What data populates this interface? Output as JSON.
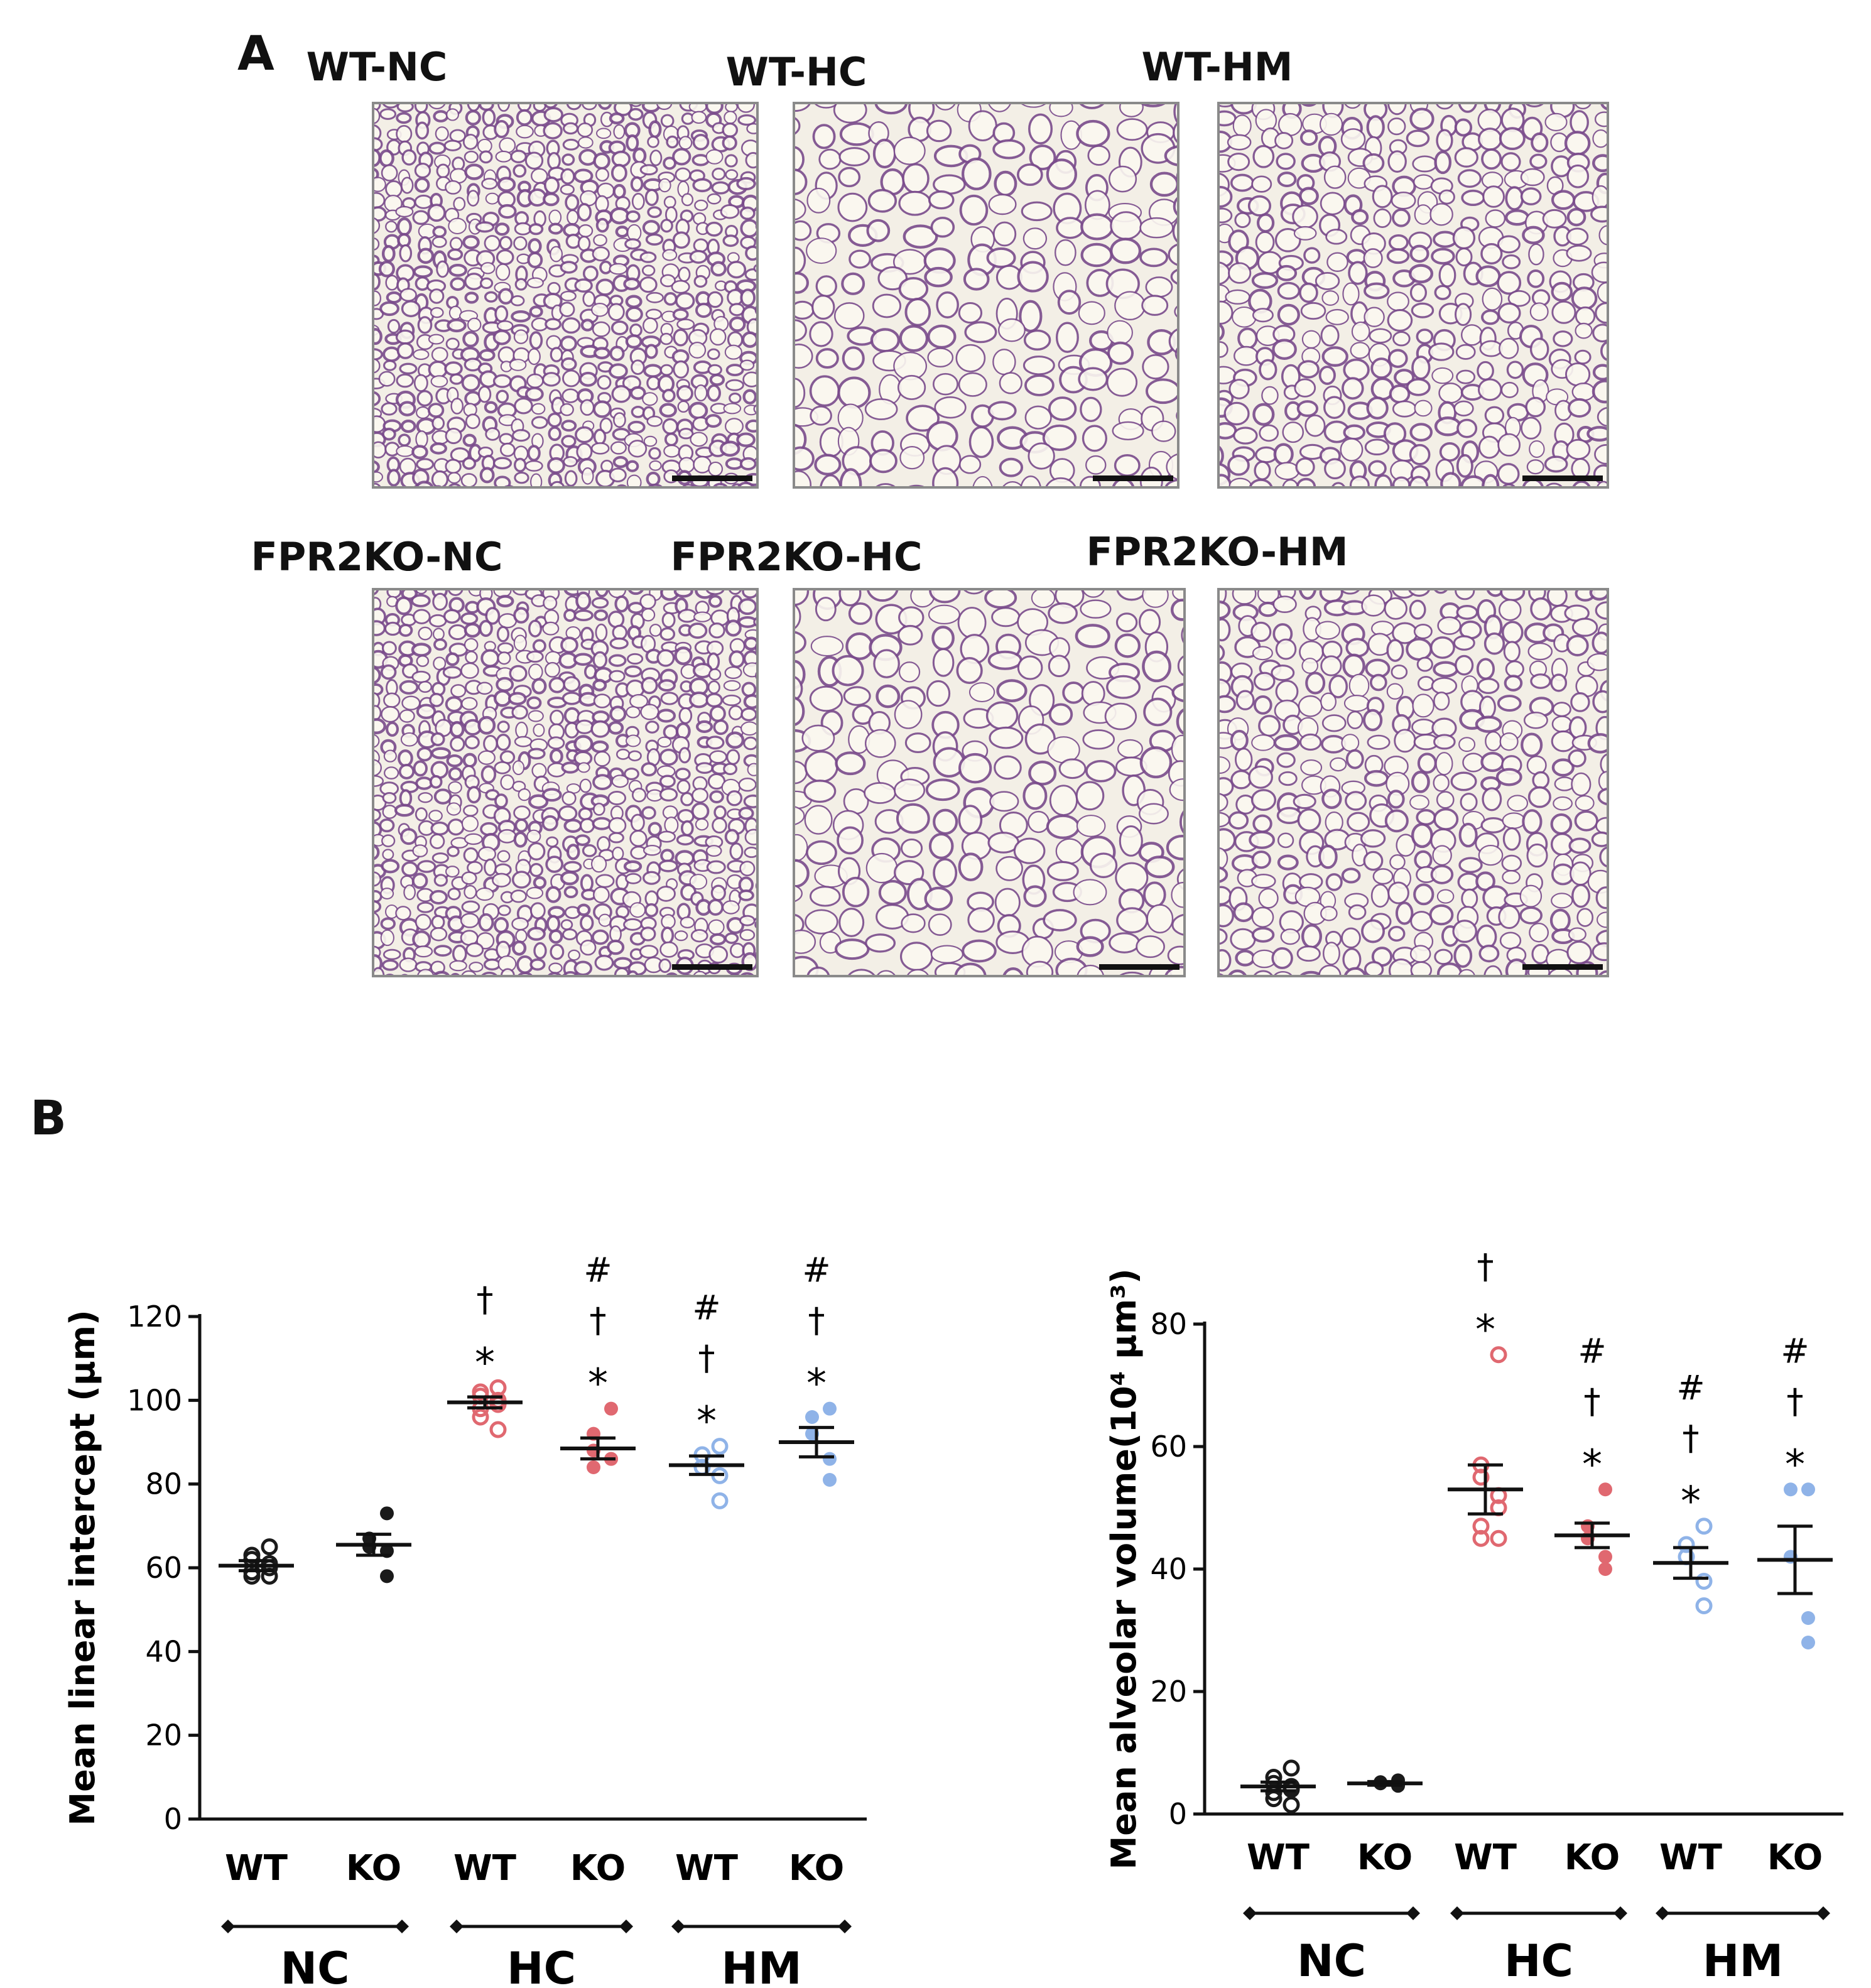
{
  "panel_a": {
    "letter": "A",
    "images": [
      {
        "title": "WT-NC",
        "tissue": "dense"
      },
      {
        "title": "WT-HC",
        "tissue": "large"
      },
      {
        "title": "WT-HM",
        "tissue": "medium"
      },
      {
        "title": "FPR2KO-NC",
        "tissue": "dense"
      },
      {
        "title": "FPR2KO-HC",
        "tissue": "large"
      },
      {
        "title": "FPR2KO-HM",
        "tissue": "medium"
      }
    ]
  },
  "panel_b": {
    "letter": "B"
  },
  "colors": {
    "black": "#1a1a1a",
    "red": "#e06870",
    "blue": "#8fb3e8",
    "tissue_stain": "#7a4b8c",
    "tissue_bg": "#f3efe6"
  },
  "chart_data": [
    {
      "type": "scatter",
      "ylabel": "Mean linear intercept (μm)",
      "ylim": [
        0,
        120
      ],
      "yticks": [
        0,
        20,
        40,
        60,
        80,
        100,
        120
      ],
      "categories": [
        "WT",
        "KO",
        "WT",
        "KO",
        "WT",
        "KO"
      ],
      "groups": [
        {
          "label": "NC",
          "span": [
            0,
            1
          ]
        },
        {
          "label": "HC",
          "span": [
            2,
            3
          ]
        },
        {
          "label": "HM",
          "span": [
            4,
            5
          ]
        }
      ],
      "series": [
        {
          "color": "black",
          "filled": false,
          "mean": 60.5,
          "sem": 1.2,
          "points": [
            65,
            63,
            62,
            61,
            60,
            59,
            58,
            58
          ],
          "annotations": []
        },
        {
          "color": "black",
          "filled": true,
          "mean": 65.5,
          "sem": 2.5,
          "points": [
            73,
            67,
            65,
            64,
            58
          ],
          "annotations": []
        },
        {
          "color": "red",
          "filled": false,
          "mean": 99.5,
          "sem": 1.3,
          "points": [
            103,
            102,
            101,
            100,
            99,
            98,
            96,
            93
          ],
          "annotations": [
            "*",
            "†"
          ]
        },
        {
          "color": "red",
          "filled": true,
          "mean": 88.5,
          "sem": 2.5,
          "points": [
            98,
            92,
            88,
            86,
            86,
            84
          ],
          "annotations": [
            "*",
            "†",
            "#"
          ]
        },
        {
          "color": "blue",
          "filled": false,
          "mean": 84.5,
          "sem": 2.2,
          "points": [
            89,
            87,
            84,
            82,
            76
          ],
          "annotations": [
            "*",
            "†",
            "#"
          ]
        },
        {
          "color": "blue",
          "filled": true,
          "mean": 90,
          "sem": 3.5,
          "points": [
            98,
            96,
            92,
            86,
            81
          ],
          "annotations": [
            "*",
            "†",
            "#"
          ]
        }
      ]
    },
    {
      "type": "scatter",
      "ylabel": "Mean alveolar volume(10⁴ μm³)",
      "ylim": [
        0,
        80
      ],
      "yticks": [
        0,
        20,
        40,
        60,
        80
      ],
      "categories": [
        "WT",
        "KO",
        "WT",
        "KO",
        "WT",
        "KO"
      ],
      "groups": [
        {
          "label": "NC",
          "span": [
            0,
            1
          ]
        },
        {
          "label": "HC",
          "span": [
            2,
            3
          ]
        },
        {
          "label": "HM",
          "span": [
            4,
            5
          ]
        }
      ],
      "series": [
        {
          "color": "black",
          "filled": false,
          "mean": 4.5,
          "sem": 0.7,
          "points": [
            7.5,
            6,
            5,
            4.5,
            4,
            3.5,
            2.5,
            1.5
          ],
          "annotations": []
        },
        {
          "color": "black",
          "filled": true,
          "mean": 5,
          "sem": 0.3,
          "points": [
            5.5,
            5.2,
            5,
            4.8,
            4.6
          ],
          "annotations": []
        },
        {
          "color": "red",
          "filled": false,
          "mean": 53,
          "sem": 4,
          "points": [
            75,
            57,
            55,
            52,
            50,
            47,
            45,
            45
          ],
          "annotations": [
            "*",
            "†"
          ]
        },
        {
          "color": "red",
          "filled": true,
          "mean": 45.5,
          "sem": 2,
          "points": [
            53,
            47,
            45,
            42,
            40
          ],
          "annotations": [
            "*",
            "†",
            "#"
          ]
        },
        {
          "color": "blue",
          "filled": false,
          "mean": 41,
          "sem": 2.5,
          "points": [
            47,
            44,
            42,
            38,
            34
          ],
          "annotations": [
            "*",
            "†",
            "#"
          ]
        },
        {
          "color": "blue",
          "filled": true,
          "mean": 41.5,
          "sem": 5.5,
          "points": [
            53,
            53,
            42,
            32,
            28
          ],
          "annotations": [
            "*",
            "†",
            "#"
          ]
        }
      ]
    }
  ]
}
